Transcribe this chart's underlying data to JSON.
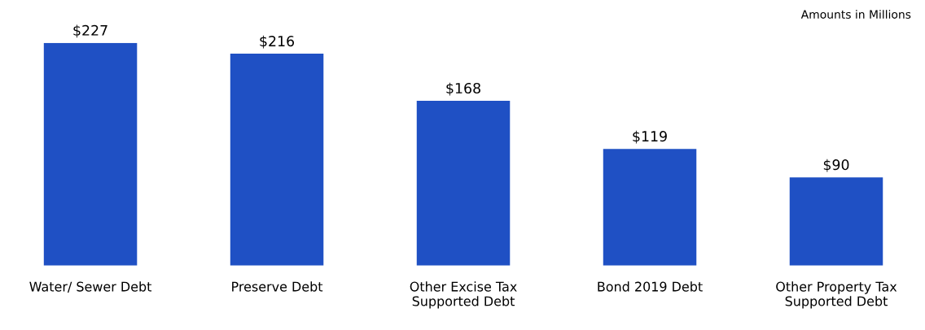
{
  "chart_data": {
    "type": "bar",
    "categories": [
      "Water/ Sewer Debt",
      "Preserve Debt",
      "Other Excise Tax\nSupported Debt",
      "Bond 2019 Debt",
      "Other Property Tax\nSupported Debt"
    ],
    "values": [
      227,
      216,
      168,
      119,
      90
    ],
    "value_labels": [
      "$227",
      "$216",
      "$168",
      "$119",
      "$90"
    ],
    "color": "#1f50c4",
    "annotations": [
      "Amounts in Millions"
    ],
    "grid": false,
    "legend": false
  }
}
